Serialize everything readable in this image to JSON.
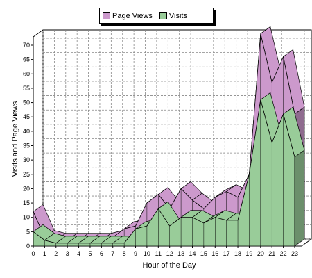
{
  "chart_data": {
    "type": "area",
    "title": "",
    "xlabel": "Hour of the Day",
    "ylabel": "Visits and Page Views",
    "x": [
      0,
      1,
      2,
      3,
      4,
      5,
      6,
      7,
      8,
      9,
      10,
      11,
      12,
      13,
      14,
      15,
      16,
      17,
      18,
      19,
      20,
      21,
      22,
      23
    ],
    "xlim": [
      0,
      23
    ],
    "ylim": [
      0,
      70
    ],
    "y_ticks": [
      0,
      5,
      10,
      15,
      20,
      25,
      30,
      35,
      40,
      45,
      50,
      55,
      60,
      65,
      70
    ],
    "grid": true,
    "legend_position": "top",
    "series": [
      {
        "name": "Page Views",
        "color": "#cc99cc",
        "values": [
          12,
          3,
          2,
          2,
          2,
          2,
          2,
          3,
          6,
          7,
          15,
          18,
          13,
          20,
          16,
          13,
          17,
          19,
          17,
          25,
          74,
          57,
          66,
          46
        ]
      },
      {
        "name": "Visits",
        "color": "#99cc99",
        "values": [
          5,
          2,
          1,
          1,
          1,
          1,
          1,
          1,
          1,
          6,
          7,
          13,
          7,
          10,
          10,
          8,
          10,
          9,
          9,
          25,
          51,
          36,
          46,
          31
        ]
      }
    ]
  },
  "legend": {
    "items": [
      {
        "label": "Page Views",
        "color": "#cc99cc"
      },
      {
        "label": "Visits",
        "color": "#99cc99"
      }
    ]
  },
  "axes": {
    "x_title": "Hour of the Day",
    "y_title": "Visits and Page Views"
  }
}
